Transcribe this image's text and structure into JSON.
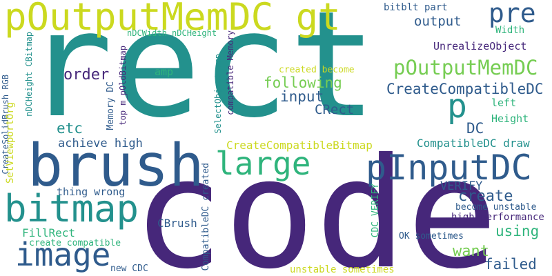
{
  "palette": {
    "dark_purple": "#46277a",
    "blue": "#2f5b8c",
    "teal": "#23918d",
    "green": "#2fb47c",
    "light_green": "#76cd53",
    "yellow": "#cbd91f"
  },
  "words": {
    "rect": "rect",
    "code": "code",
    "brush": "brush",
    "poutputmemdc_gt": "pOutputMemDC gt",
    "pinputdc": "pInputDC",
    "bitmap": "bitmap",
    "image": "image",
    "large": "large",
    "pre": "pre",
    "poutputmemdc": "pOutputMemDC",
    "p": "p",
    "output": "output",
    "bitblt_part": "bitblt part",
    "width": "Width",
    "unrealizeobject": "UnrealizeObject",
    "ndcwidth_ndcheight": "nDCWidth nDCHeight",
    "order": "order",
    "amp": "amp",
    "created_become": "created become",
    "following": "following",
    "createcompatibledc": "CreateCompatibleDC",
    "input": "input",
    "crect": "CRect",
    "left": "left",
    "height": "Height",
    "etc": "etc",
    "dc": "DC",
    "achieve_high": "achieve high",
    "createcompatiblebitmap": "CreateCompatibleBitmap",
    "compatibledc_draw": "CompatibleDC draw",
    "verify": "VERIFY",
    "create": "create",
    "thing_wrong": "thing wrong",
    "become_unstable": "become unstable",
    "fillrect": "FillRect",
    "cbrush": "CBrush",
    "high_performance": "high performance",
    "using": "using",
    "create_compatible": "create compatible",
    "ok_sometimes": "OK sometimes",
    "want": "want",
    "new_cdc": "new CDC",
    "failed": "failed",
    "unstable_sometimes": "unstable sometimes",
    "createsolidbrush_rgb": "CreateSolidBrush RGB",
    "ndcheight_cbitmap": "nDCHeight CBitmap",
    "setvieworg": "SetViewportOrg",
    "memory_dc": "Memory DC",
    "top_m_poldbitmap": "top m_pOldBitmap",
    "selectobject_amp": "SelectObject amp",
    "compatible_memory": "compatible Memory",
    "compatibledc_created": "CompatibleDC created",
    "cdc_verify": "CDC VERIFY"
  }
}
